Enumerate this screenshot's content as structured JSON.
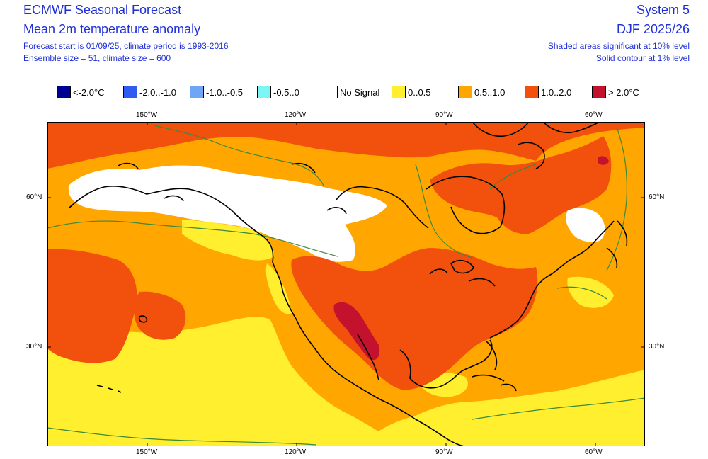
{
  "header": {
    "title": "ECMWF Seasonal Forecast",
    "subtitle": "Mean 2m temperature anomaly",
    "forecast_start": "Forecast start is 01/09/25, climate period is 1993-2016",
    "ensemble": "Ensemble size = 51, climate size = 600",
    "system": "System 5",
    "season": "DJF 2025/26",
    "note_shaded": "Shaded areas significant at 10% level",
    "note_contour": "Solid contour at 1% level"
  },
  "legend": [
    {
      "label": "<-2.0°C",
      "color": "#000090"
    },
    {
      "label": "-2.0..-1.0",
      "color": "#2f5cf0"
    },
    {
      "label": "-1.0..-0.5",
      "color": "#6ea6f5"
    },
    {
      "label": "-0.5..0",
      "color": "#7ef5f5"
    },
    {
      "label": "No Signal",
      "color": "#ffffff"
    },
    {
      "label": "0..0.5",
      "color": "#ffef2e"
    },
    {
      "label": "0.5..1.0",
      "color": "#ffa600"
    },
    {
      "label": "1.0..2.0",
      "color": "#f2500d"
    },
    {
      "label": "> 2.0°C",
      "color": "#c4122e"
    }
  ],
  "axes": {
    "top": [
      "150°W",
      "120°W",
      "90°W",
      "60°W"
    ],
    "bottom": [
      "150°W",
      "120°W",
      "90°W",
      "60°W"
    ],
    "left": [
      "60°N",
      "30°N"
    ],
    "right": [
      "60°N",
      "30°N"
    ]
  },
  "map_colors": {
    "significant_contour": "#3a8a3a",
    "coastline": "#000000"
  }
}
